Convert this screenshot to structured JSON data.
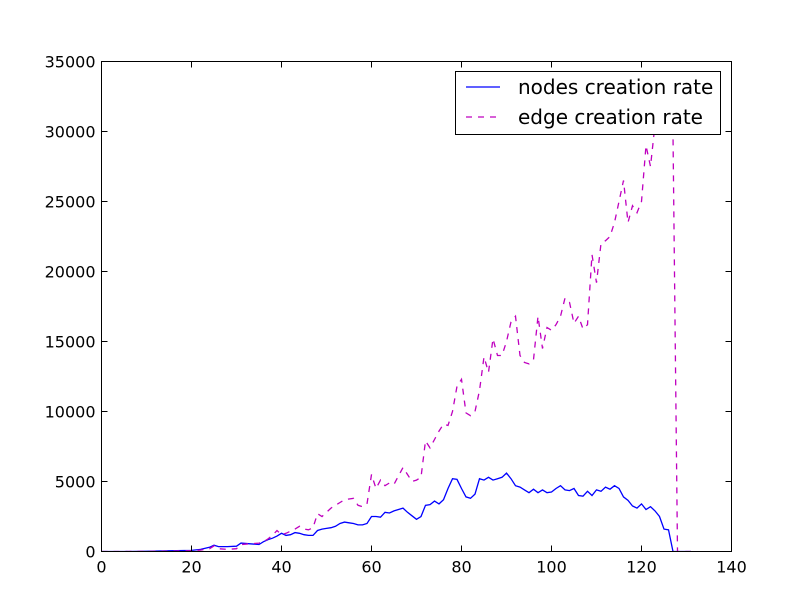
{
  "chart_data": {
    "type": "line",
    "xlim": [
      0,
      140
    ],
    "ylim": [
      0,
      35000
    ],
    "xticks": [
      "0",
      "20",
      "40",
      "60",
      "80",
      "100",
      "120",
      "140"
    ],
    "yticks": [
      "0",
      "5000",
      "10000",
      "15000",
      "20000",
      "25000",
      "30000",
      "35000"
    ],
    "grid": false,
    "legend_position": "top-right",
    "series": [
      {
        "name": "nodes creation rate",
        "color": "#0000ff",
        "style": "solid",
        "x": [
          0,
          5,
          10,
          15,
          20,
          22,
          24,
          25,
          26,
          28,
          30,
          31,
          33,
          35,
          36,
          37,
          38,
          39,
          40,
          41,
          42,
          43,
          44,
          45,
          46,
          47,
          48,
          49,
          50,
          51,
          52,
          53,
          54,
          55,
          56,
          57,
          58,
          59,
          60,
          61,
          62,
          63,
          64,
          65,
          66,
          67,
          68,
          69,
          70,
          71,
          72,
          73,
          74,
          75,
          76,
          77,
          78,
          79,
          80,
          81,
          82,
          83,
          84,
          85,
          86,
          87,
          88,
          89,
          90,
          91,
          92,
          93,
          94,
          95,
          96,
          97,
          98,
          99,
          100,
          101,
          102,
          103,
          104,
          105,
          106,
          107,
          108,
          109,
          110,
          111,
          112,
          113,
          114,
          115,
          116,
          117,
          118,
          119,
          120,
          121,
          122,
          123,
          124,
          125,
          126,
          127,
          128,
          129,
          130,
          131
        ],
        "y": [
          0,
          0,
          20,
          50,
          80,
          150,
          300,
          450,
          350,
          350,
          380,
          600,
          550,
          500,
          700,
          850,
          950,
          1100,
          1300,
          1150,
          1200,
          1350,
          1300,
          1200,
          1150,
          1150,
          1500,
          1600,
          1650,
          1700,
          1800,
          2000,
          2100,
          2050,
          2000,
          1900,
          1900,
          2000,
          2500,
          2500,
          2450,
          2800,
          2750,
          2900,
          3000,
          3100,
          2800,
          2550,
          2300,
          2500,
          3300,
          3350,
          3600,
          3400,
          3700,
          4500,
          5200,
          5150,
          4500,
          3900,
          3800,
          4100,
          5200,
          5100,
          5300,
          5100,
          5200,
          5300,
          5600,
          5200,
          4700,
          4600,
          4400,
          4200,
          4450,
          4200,
          4400,
          4200,
          4250,
          4500,
          4700,
          4400,
          4350,
          4500,
          4000,
          3950,
          4300,
          4000,
          4400,
          4300,
          4600,
          4450,
          4700,
          4500,
          3900,
          3650,
          3250,
          3100,
          3400,
          3000,
          3200,
          2900,
          2500,
          1600,
          1550,
          0,
          0,
          0,
          0,
          0
        ]
      },
      {
        "name": "edge creation rate",
        "color": "#bf00bf",
        "style": "dashed",
        "x": [
          0,
          5,
          10,
          15,
          20,
          22,
          24,
          25,
          26,
          28,
          30,
          31,
          33,
          35,
          36,
          37,
          38,
          39,
          40,
          41,
          42,
          43,
          44,
          45,
          46,
          47,
          48,
          49,
          50,
          51,
          52,
          53,
          54,
          55,
          56,
          57,
          58,
          59,
          60,
          61,
          62,
          63,
          64,
          65,
          66,
          67,
          68,
          69,
          70,
          71,
          72,
          73,
          74,
          75,
          76,
          77,
          78,
          79,
          80,
          81,
          82,
          83,
          84,
          85,
          86,
          87,
          88,
          89,
          90,
          91,
          92,
          93,
          94,
          95,
          96,
          97,
          98,
          99,
          100,
          101,
          102,
          103,
          104,
          105,
          106,
          107,
          108,
          109,
          110,
          111,
          112,
          113,
          114,
          115,
          116,
          117,
          118,
          119,
          120,
          121,
          122,
          123,
          124,
          125,
          126,
          127,
          128,
          129,
          130,
          131
        ],
        "y": [
          0,
          0,
          10,
          20,
          50,
          100,
          200,
          400,
          200,
          150,
          200,
          500,
          550,
          600,
          700,
          900,
          1150,
          1500,
          1200,
          1300,
          1450,
          1600,
          1800,
          1600,
          1550,
          1700,
          2700,
          2500,
          2800,
          3100,
          3300,
          3500,
          3700,
          3750,
          3800,
          3300,
          3200,
          3400,
          5500,
          4500,
          5100,
          4700,
          4900,
          4800,
          5400,
          6000,
          5500,
          5000,
          5100,
          5300,
          7900,
          7400,
          8000,
          8600,
          9100,
          9000,
          10000,
          11800,
          12300,
          9900,
          9700,
          10000,
          11500,
          13900,
          12800,
          15200,
          14000,
          14000,
          15000,
          16400,
          16800,
          14000,
          13500,
          13400,
          13700,
          16800,
          14500,
          16000,
          15800,
          16200,
          16800,
          18100,
          17800,
          16300,
          16800,
          15900,
          16200,
          21200,
          19200,
          22000,
          22200,
          22500,
          23500,
          25000,
          26500,
          23500,
          24700,
          24200,
          25000,
          29000,
          27500,
          30500,
          30000,
          30500,
          30000,
          29800,
          0,
          0,
          0,
          0
        ]
      }
    ]
  }
}
